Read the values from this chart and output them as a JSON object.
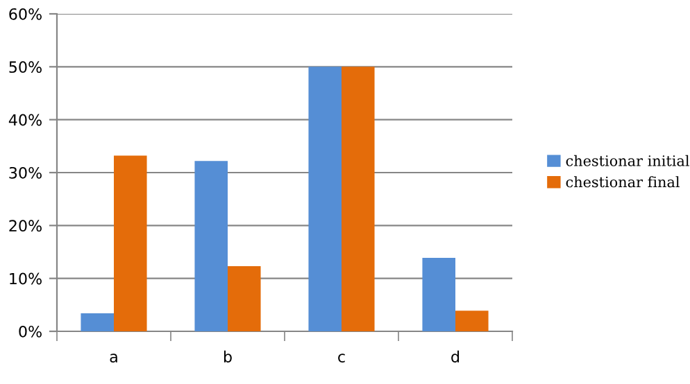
{
  "chart_data": {
    "type": "bar",
    "categories": [
      "a",
      "b",
      "c",
      "d"
    ],
    "series": [
      {
        "name": "chestionar initial",
        "color": "#558ed5",
        "values": [
          3.4,
          32.2,
          50,
          13.9
        ]
      },
      {
        "name": "chestionar final",
        "color": "#e46c0a",
        "values": [
          33.2,
          12.3,
          50,
          3.9
        ]
      }
    ],
    "ylim": [
      0,
      60
    ],
    "yticks": [
      {
        "value": 0,
        "label": "0%"
      },
      {
        "value": 10,
        "label": "10%"
      },
      {
        "value": 20,
        "label": "20%"
      },
      {
        "value": 30,
        "label": "30%"
      },
      {
        "value": 40,
        "label": "40%"
      },
      {
        "value": 50,
        "label": "50%"
      },
      {
        "value": 60,
        "label": "60%"
      }
    ],
    "grid": "y",
    "legend": "right"
  }
}
